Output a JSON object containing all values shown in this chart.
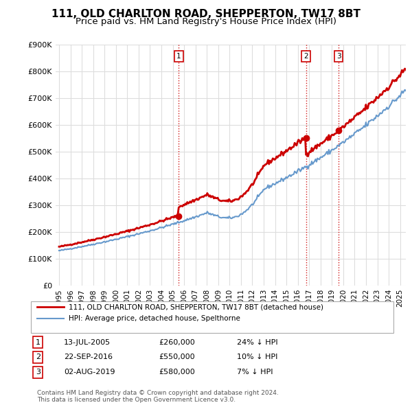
{
  "title": "111, OLD CHARLTON ROAD, SHEPPERTON, TW17 8BT",
  "subtitle": "Price paid vs. HM Land Registry's House Price Index (HPI)",
  "ylim": [
    0,
    900000
  ],
  "yticks": [
    0,
    100000,
    200000,
    300000,
    400000,
    500000,
    600000,
    700000,
    800000,
    900000
  ],
  "ytick_labels": [
    "£0",
    "£100K",
    "£200K",
    "£300K",
    "£400K",
    "£500K",
    "£600K",
    "£700K",
    "£800K",
    "£900K"
  ],
  "sale_prices": [
    260000,
    550000,
    580000
  ],
  "sale_labels": [
    "1",
    "2",
    "3"
  ],
  "sale_year_floats": [
    2005.539,
    2016.726,
    2019.585
  ],
  "sale_info": [
    {
      "label": "1",
      "date": "13-JUL-2005",
      "price": "£260,000",
      "hpi": "24% ↓ HPI"
    },
    {
      "label": "2",
      "date": "22-SEP-2016",
      "price": "£550,000",
      "hpi": "10% ↓ HPI"
    },
    {
      "label": "3",
      "date": "02-AUG-2019",
      "price": "£580,000",
      "hpi": "7% ↓ HPI"
    }
  ],
  "legend_entries": [
    {
      "label": "111, OLD CHARLTON ROAD, SHEPPERTON, TW17 8BT (detached house)",
      "color": "#cc0000",
      "lw": 2
    },
    {
      "label": "HPI: Average price, detached house, Spelthorne",
      "color": "#6699cc",
      "lw": 1.5
    }
  ],
  "footer": "Contains HM Land Registry data © Crown copyright and database right 2024.\nThis data is licensed under the Open Government Licence v3.0.",
  "background_color": "#ffffff",
  "grid_color": "#dddddd",
  "vline_color": "#cc0000",
  "title_fontsize": 11,
  "subtitle_fontsize": 9.5,
  "tick_fontsize": 8,
  "x_start_year": 1995,
  "x_end_year": 2025
}
